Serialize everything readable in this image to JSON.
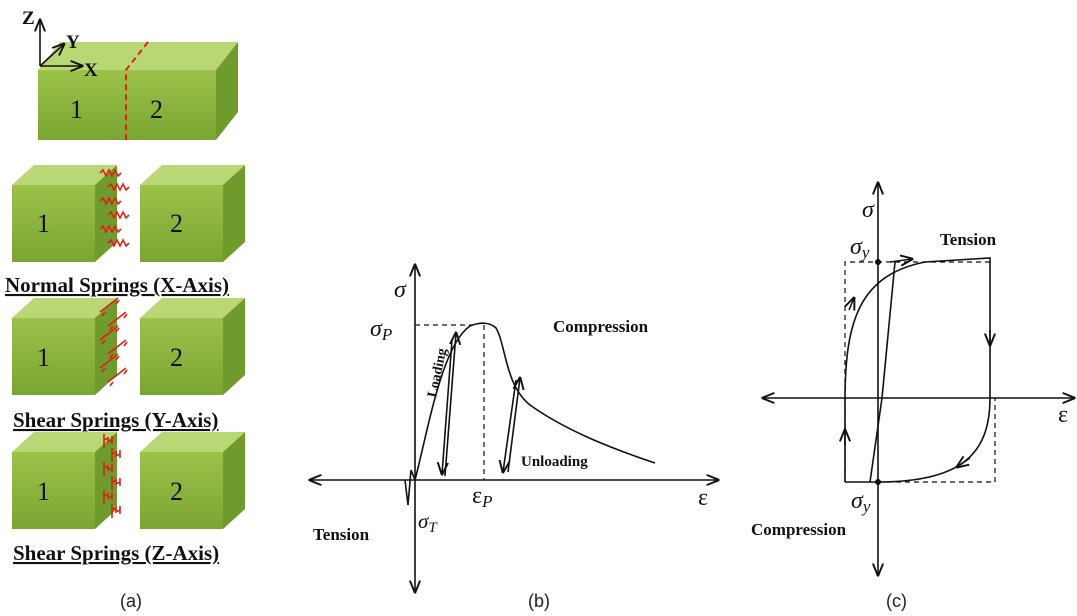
{
  "panel_a": {
    "axes": {
      "z": "Z",
      "y": "Y",
      "x": "X"
    },
    "blocks": [
      {
        "left": "1",
        "right": "2"
      },
      {
        "left": "1",
        "right": "2"
      },
      {
        "left": "1",
        "right": "2"
      },
      {
        "left": "1",
        "right": "2"
      }
    ],
    "captions": [
      "Normal Springs (X-Axis)",
      "Shear Springs (Y-Axis)",
      "Shear Springs (Z-Axis)"
    ],
    "label": "(a)"
  },
  "panel_b": {
    "y_axis": "σ",
    "peak": {
      "symbol": "σ",
      "subscript": "P"
    },
    "loading": "Loading",
    "compression": "Compression",
    "unloading": "Unloading",
    "strain_peak": {
      "symbol": "ε",
      "subscript": "P"
    },
    "x_axis": "ε",
    "tension": "Tension",
    "tension_stress": {
      "symbol": "σ",
      "subscript": "T"
    },
    "label": "(b)"
  },
  "panel_c": {
    "y_axis": "σ",
    "yield_top": {
      "symbol": "σ",
      "subscript": "y"
    },
    "tension": "Tension",
    "x_axis": "ε",
    "yield_bottom": {
      "symbol": "σ",
      "subscript": "y"
    },
    "compression": "Compression",
    "label": "(c)"
  }
}
